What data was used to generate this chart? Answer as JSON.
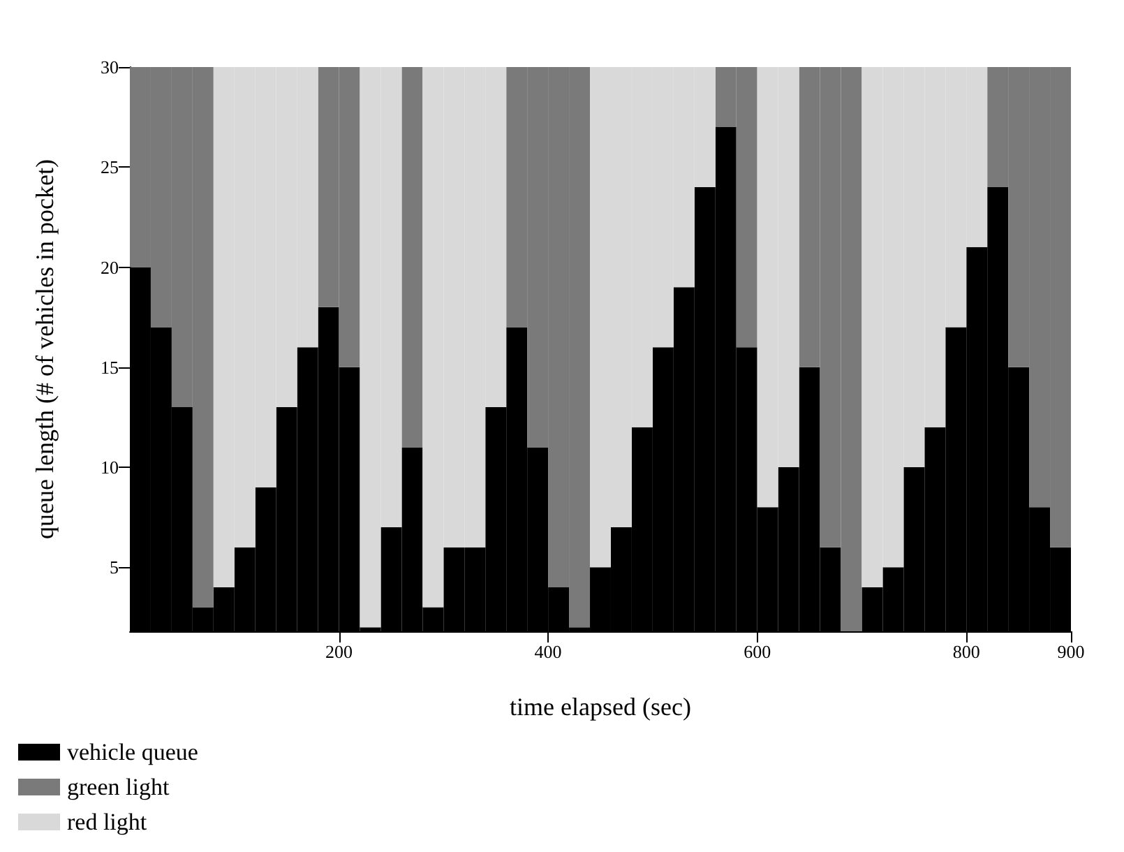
{
  "chart_data": {
    "type": "bar",
    "stacked": true,
    "xlabel": "time elapsed (sec)",
    "ylabel": "queue length (# of vehicles in pocket)",
    "x": [
      10,
      30,
      50,
      70,
      90,
      110,
      130,
      150,
      170,
      190,
      210,
      230,
      250,
      270,
      290,
      310,
      330,
      350,
      370,
      390,
      410,
      430,
      450,
      470,
      490,
      510,
      530,
      550,
      570,
      590,
      610,
      630,
      650,
      670,
      690,
      710,
      730,
      750,
      770,
      790,
      810,
      830,
      850,
      870,
      890
    ],
    "series": [
      {
        "name": "vehicle queue",
        "color": "#000000",
        "values": [
          20,
          17,
          13,
          3,
          4,
          6,
          9,
          13,
          16,
          18,
          15,
          2,
          7,
          11,
          3,
          6,
          6,
          13,
          17,
          11,
          4,
          2,
          5,
          7,
          12,
          16,
          19,
          24,
          27,
          16,
          8,
          10,
          15,
          6,
          null,
          4,
          5,
          10,
          12,
          17,
          21,
          24,
          15,
          8,
          6
        ]
      },
      {
        "name": "green light",
        "color": "#7a7a7a",
        "values": [
          10,
          13,
          17,
          27,
          null,
          null,
          null,
          null,
          null,
          12,
          15,
          null,
          null,
          19,
          null,
          null,
          null,
          null,
          13,
          19,
          26,
          28,
          null,
          null,
          null,
          null,
          null,
          null,
          3,
          14,
          null,
          null,
          15,
          24,
          30,
          null,
          null,
          null,
          null,
          null,
          null,
          6,
          15,
          22,
          24
        ]
      },
      {
        "name": "red light",
        "color": "#d9d9d9",
        "values": [
          null,
          null,
          null,
          null,
          26,
          24,
          21,
          17,
          14,
          null,
          null,
          28,
          23,
          null,
          27,
          24,
          24,
          17,
          null,
          null,
          null,
          null,
          25,
          23,
          18,
          14,
          11,
          6,
          null,
          null,
          22,
          20,
          null,
          null,
          null,
          26,
          25,
          20,
          18,
          13,
          9,
          null,
          null,
          null,
          null
        ]
      }
    ],
    "xlim": [
      0,
      900
    ],
    "xticks": [
      200,
      400,
      600,
      800,
      900
    ],
    "ylim": [
      1.8,
      30
    ],
    "yticks": [
      5,
      10,
      15,
      20,
      25,
      30
    ],
    "grid": false,
    "legend": "bottom left"
  }
}
